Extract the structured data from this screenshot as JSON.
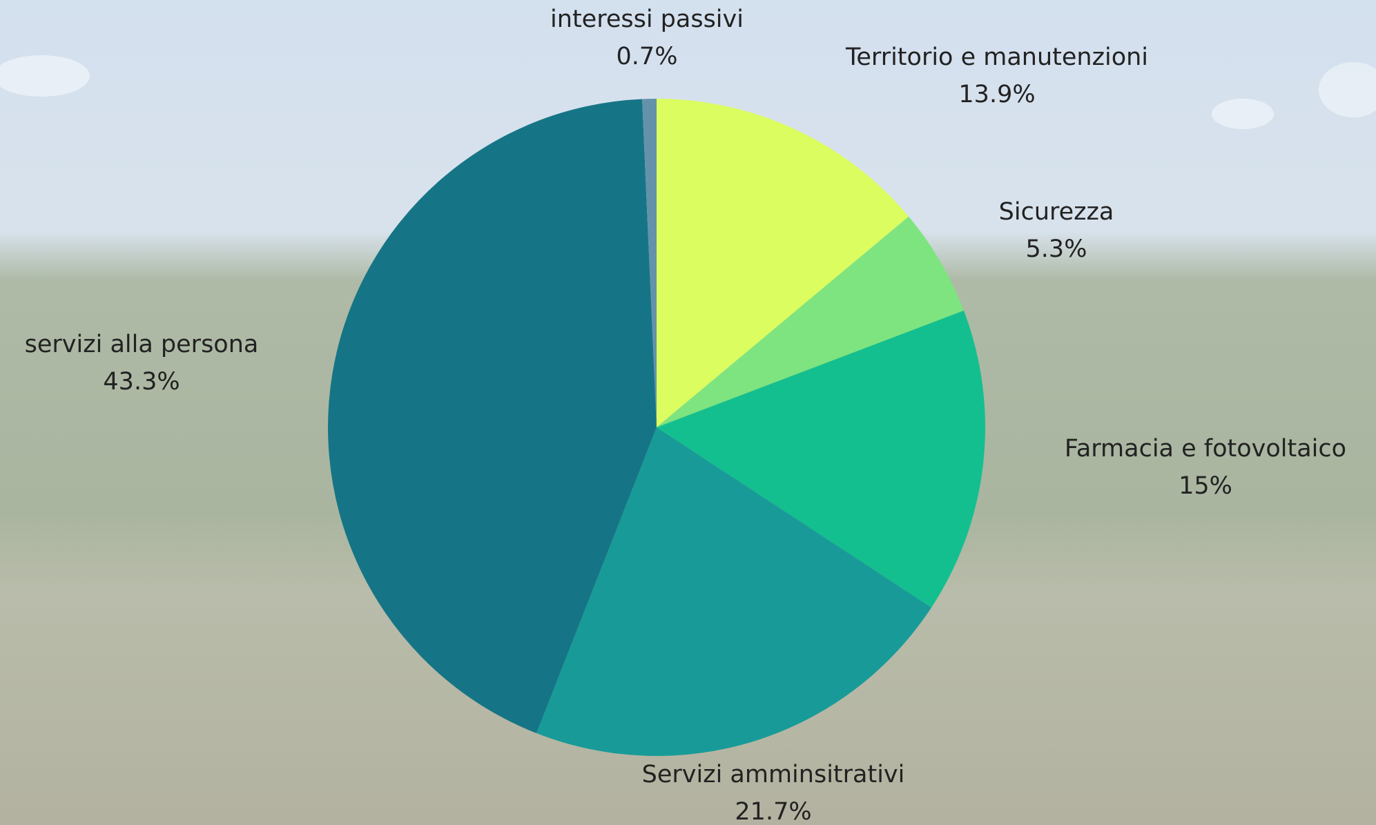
{
  "chart_data": {
    "type": "pie",
    "categories": [
      "Territorio e manutenzioni",
      "Sicurezza",
      "Farmacia e fotovoltaico",
      "Servizi amminsitrativi",
      "servizi alla persona",
      "interessi passivi"
    ],
    "values": [
      13.9,
      5.3,
      15,
      21.7,
      43.3,
      0.7
    ],
    "value_labels": [
      "13.9%",
      "5.3%",
      "15%",
      "21.7%",
      "43.3%",
      "0.7%"
    ],
    "colors": [
      "#dcfd60",
      "#7ee47f",
      "#14bf8f",
      "#189b98",
      "#157586",
      "#6492aa"
    ]
  }
}
